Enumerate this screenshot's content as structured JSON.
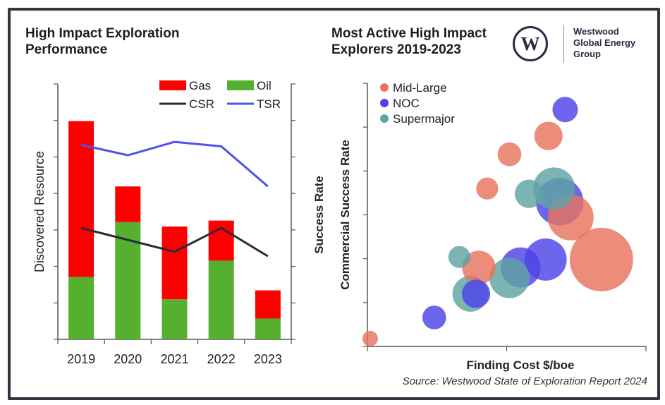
{
  "left_title": [
    "High Impact Exploration",
    "Performance"
  ],
  "right_title": [
    "Most Active High Impact",
    "Explorers 2019-2023"
  ],
  "logo": {
    "mark": "W",
    "text": [
      "Westwood",
      "Global Energy",
      "Group"
    ]
  },
  "source": "Source: Westwood State of Exploration Report 2024",
  "chart_data": [
    {
      "type": "bar",
      "stacked": true,
      "categories": [
        "2019",
        "2020",
        "2021",
        "2022",
        "2023"
      ],
      "series": [
        {
          "name": "Gas",
          "color": "#ff0000",
          "values": [
            5.25,
            1.2,
            2.45,
            1.35,
            0.95
          ]
        },
        {
          "name": "Oil",
          "color": "#55b030",
          "values": [
            2.1,
            3.95,
            1.35,
            2.65,
            0.7
          ]
        }
      ],
      "lines": [
        {
          "name": "CSR",
          "color": "#2a2a3a",
          "values": [
            3.75,
            3.35,
            2.95,
            3.75,
            2.8
          ]
        },
        {
          "name": "TSR",
          "color": "#5050f0",
          "values": [
            6.55,
            6.2,
            6.65,
            6.5,
            5.15
          ]
        }
      ],
      "ylabel": "Discovered Resource",
      "y2label": "Success Rate",
      "ylim": [
        0,
        8.6
      ],
      "grid": false,
      "legend_position": "top-right"
    },
    {
      "type": "scatter",
      "bubble": true,
      "xlabel": "Finding Cost $/boe",
      "ylabel": "Commercial Success Rate",
      "xlim": [
        0,
        10
      ],
      "ylim": [
        0,
        10
      ],
      "legend_position": "top-left",
      "series": [
        {
          "name": "Mid-Large",
          "color": "#e8735e",
          "points": [
            {
              "x": 0.1,
              "y": 0.3,
              "size": 1.5
            },
            {
              "x": 4.0,
              "y": 3.0,
              "size": 7
            },
            {
              "x": 4.3,
              "y": 6.0,
              "size": 3
            },
            {
              "x": 5.1,
              "y": 7.3,
              "size": 3.5
            },
            {
              "x": 6.5,
              "y": 8.0,
              "size": 5
            },
            {
              "x": 7.3,
              "y": 4.9,
              "size": 13
            },
            {
              "x": 8.4,
              "y": 3.3,
              "size": 25
            }
          ]
        },
        {
          "name": "NOC",
          "color": "#4d43e6",
          "points": [
            {
              "x": 2.4,
              "y": 1.1,
              "size": 3.5
            },
            {
              "x": 3.9,
              "y": 2.0,
              "size": 5
            },
            {
              "x": 5.5,
              "y": 3.0,
              "size": 10
            },
            {
              "x": 6.4,
              "y": 3.3,
              "size": 11
            },
            {
              "x": 6.9,
              "y": 5.5,
              "size": 14
            },
            {
              "x": 7.1,
              "y": 9.0,
              "size": 4
            }
          ]
        },
        {
          "name": "Supermajor",
          "color": "#5fa3a3",
          "points": [
            {
              "x": 3.3,
              "y": 3.4,
              "size": 3
            },
            {
              "x": 3.7,
              "y": 2.0,
              "size": 8
            },
            {
              "x": 5.1,
              "y": 2.6,
              "size": 10
            },
            {
              "x": 5.8,
              "y": 5.8,
              "size": 5
            },
            {
              "x": 6.7,
              "y": 6.0,
              "size": 11
            }
          ]
        }
      ]
    }
  ]
}
